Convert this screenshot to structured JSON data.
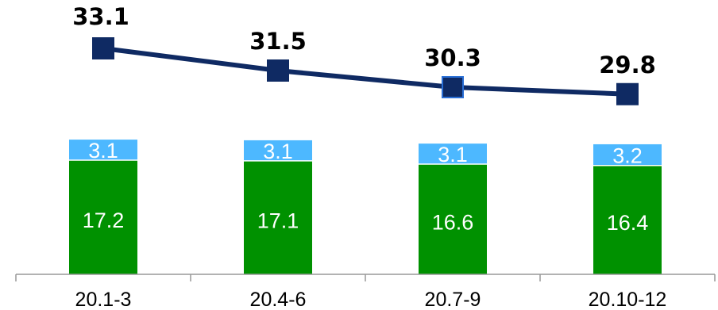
{
  "chart_data": {
    "type": "bar",
    "categories": [
      "20.1-3",
      "20.4-6",
      "20.7-9",
      "20.10-12"
    ],
    "series": [
      {
        "kind": "stacked-bar",
        "color": "#009100",
        "values": [
          17.2,
          17.1,
          16.6,
          16.4
        ]
      },
      {
        "kind": "stacked-bar",
        "color": "#4db8ff",
        "values": [
          3.1,
          3.1,
          3.1,
          3.2
        ]
      },
      {
        "kind": "line",
        "color": "#0f2a63",
        "values": [
          33.1,
          31.5,
          30.3,
          29.8
        ]
      }
    ],
    "grid": false,
    "legend": "none"
  }
}
